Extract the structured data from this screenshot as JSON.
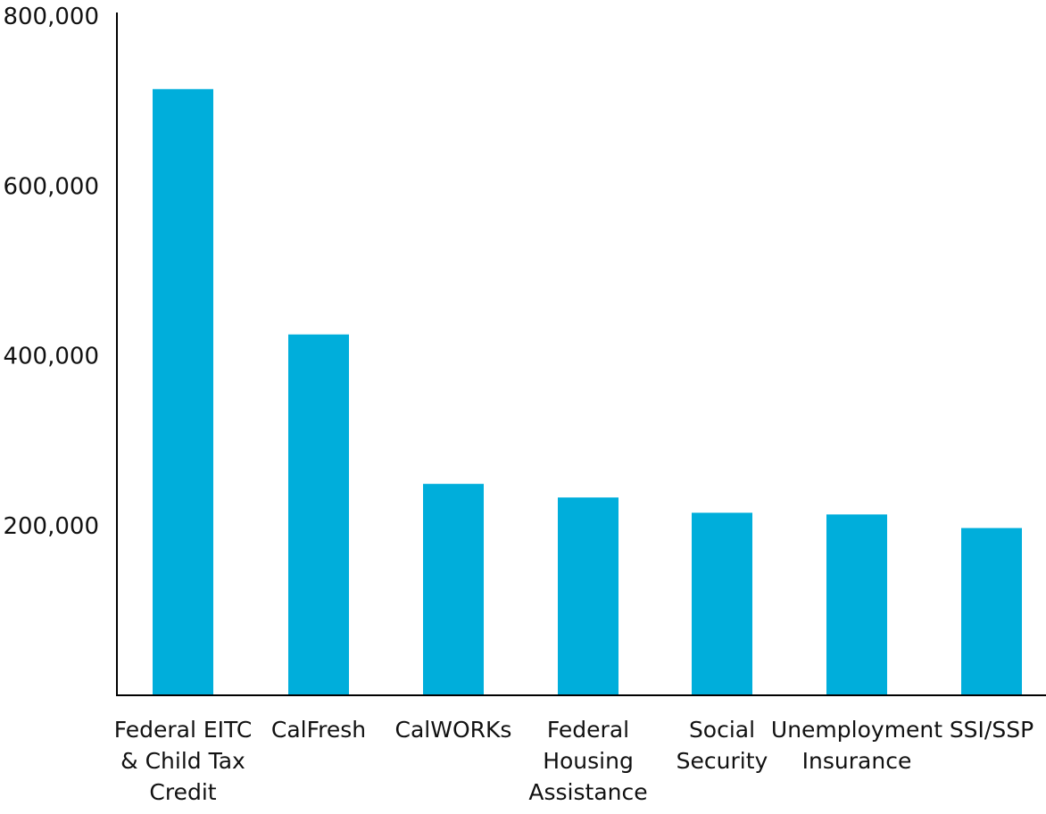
{
  "chart_data": {
    "type": "bar",
    "title": "",
    "xlabel": "",
    "ylabel": "",
    "ylim": [
      0,
      800000
    ],
    "yticks": [
      200000,
      400000,
      600000,
      800000
    ],
    "ytick_labels": [
      "200,000",
      "400,000",
      "600,000",
      "800,000"
    ],
    "grid": false,
    "legend": "none",
    "bar_color": "#00AEDB",
    "axis_color": "#000000",
    "categories": [
      "Federal EITC & Child Tax Credit",
      "CalFresh",
      "CalWORKs",
      "Federal Housing Assistance",
      "Social Security",
      "Unemployment Insurance",
      "SSI/SSP"
    ],
    "category_lines": [
      [
        "Federal EITC",
        "& Child Tax",
        "Credit"
      ],
      [
        "CalFresh"
      ],
      [
        "CalWORKs"
      ],
      [
        "Federal",
        "Housing",
        "Assistance"
      ],
      [
        "Social",
        "Security"
      ],
      [
        "Unemployment",
        "Insurance"
      ],
      [
        "SSI/SSP"
      ]
    ],
    "values": [
      714000,
      425000,
      249000,
      233000,
      215000,
      213000,
      197000
    ]
  }
}
